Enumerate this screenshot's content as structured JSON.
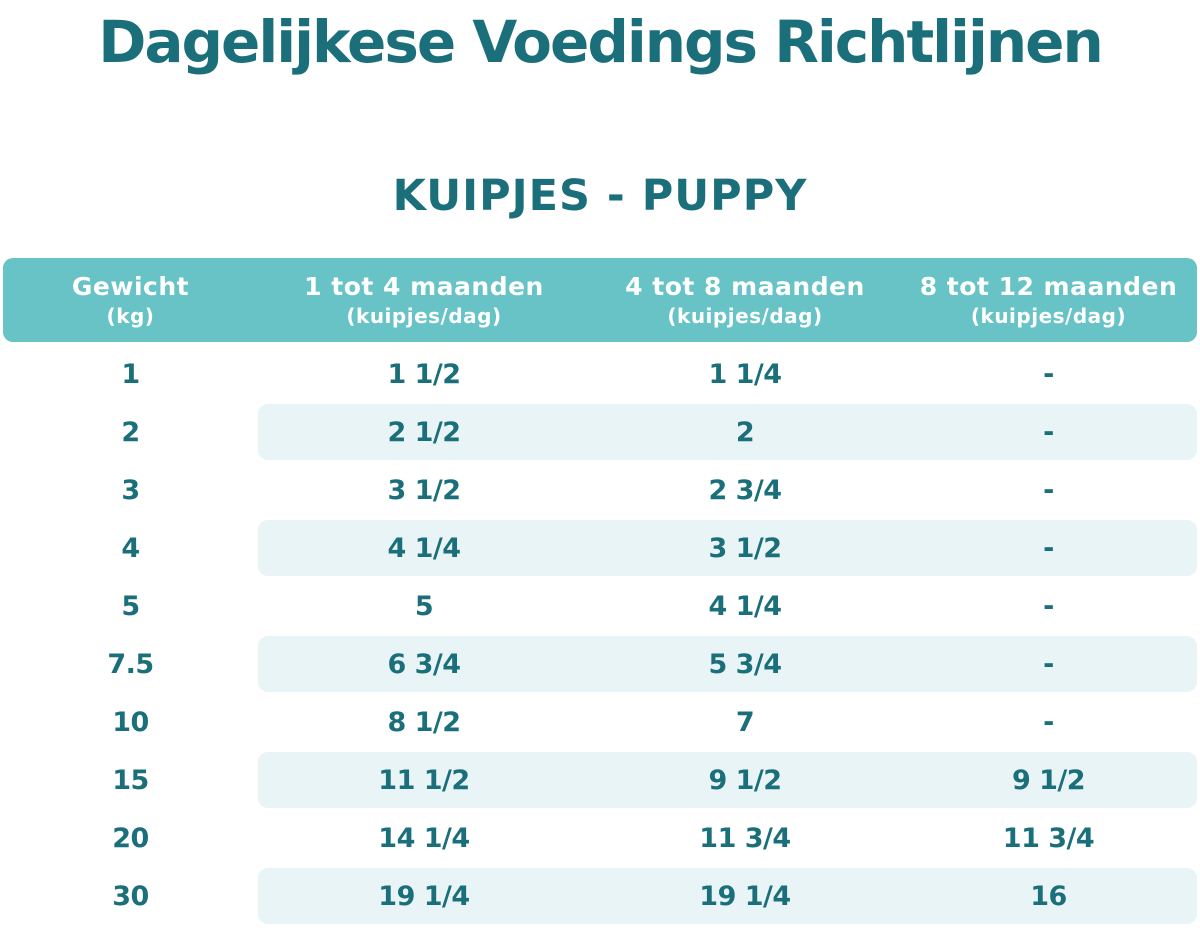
{
  "colors": {
    "title_text": "#1b6f7a",
    "header_bg": "#68c3c7",
    "header_text": "#ffffff",
    "stripe_bg": "#e9f4f6",
    "value_text": "#1a6f7a",
    "page_bg": "#ffffff"
  },
  "chart_data": {
    "type": "table",
    "title": "Dagelijkese Voedings Richtlijnen",
    "subtitle": "KUIPJES - PUPPY",
    "legend_position": "none",
    "grid": "row-stripes",
    "columns": [
      {
        "label": "Gewicht",
        "unit": "(kg)"
      },
      {
        "label": "1 tot 4 maanden",
        "unit": "(kuipjes/dag)"
      },
      {
        "label": "4 tot 8 maanden",
        "unit": "(kuipjes/dag)"
      },
      {
        "label": "8 tot 12 maanden",
        "unit": "(kuipjes/dag)"
      }
    ],
    "rows": [
      [
        "1",
        "1 1/2",
        "1 1/4",
        "-"
      ],
      [
        "2",
        "2 1/2",
        "2",
        "-"
      ],
      [
        "3",
        "3 1/2",
        "2 3/4",
        "-"
      ],
      [
        "4",
        "4 1/4",
        "3 1/2",
        "-"
      ],
      [
        "5",
        "5",
        "4 1/4",
        "-"
      ],
      [
        "7.5",
        "6 3/4",
        "5 3/4",
        "-"
      ],
      [
        "10",
        "8 1/2",
        "7",
        "-"
      ],
      [
        "15",
        "11 1/2",
        "9 1/2",
        "9 1/2"
      ],
      [
        "20",
        "14 1/4",
        "11 3/4",
        "11 3/4"
      ],
      [
        "30",
        "19 1/4",
        "19 1/4",
        "16"
      ]
    ],
    "striped_row_indices": [
      1,
      3,
      5,
      7,
      9
    ]
  }
}
